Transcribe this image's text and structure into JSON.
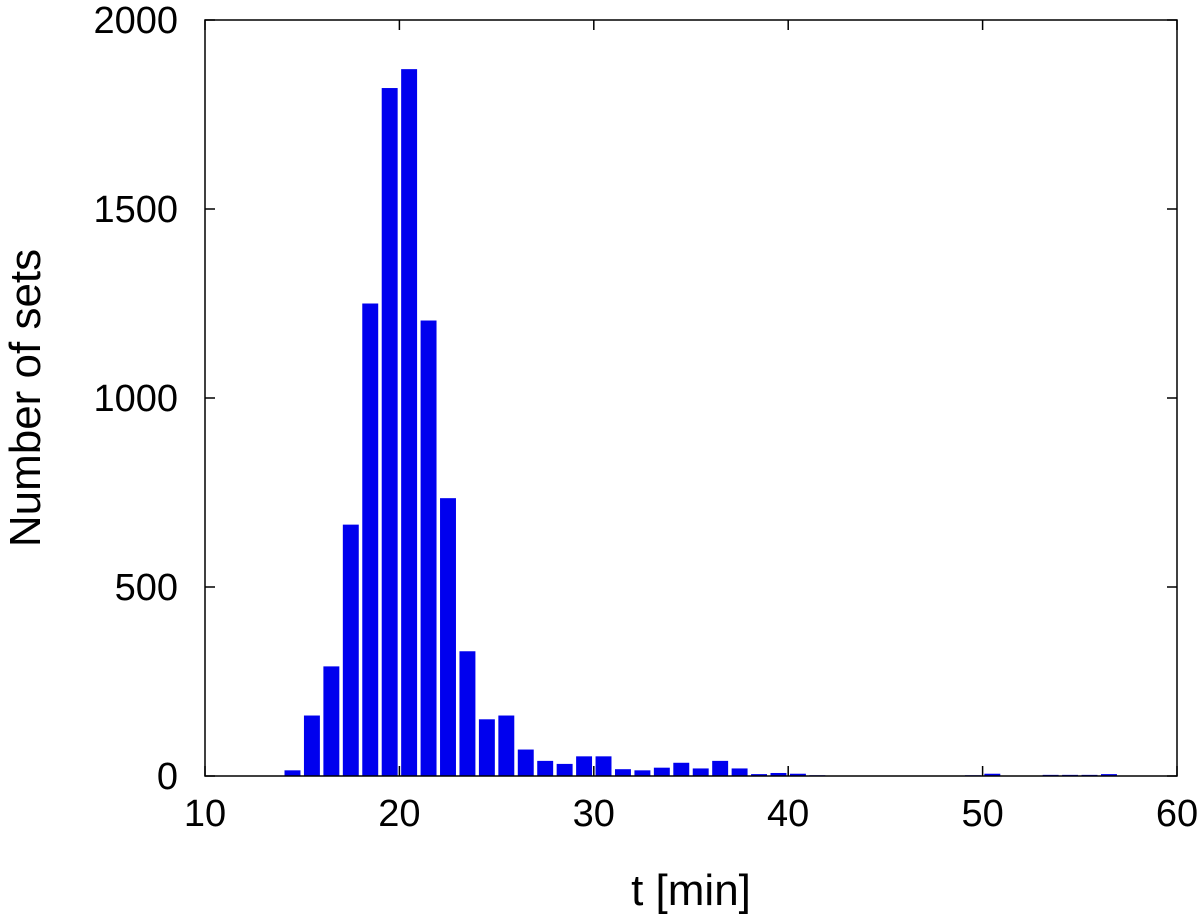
{
  "chart_data": {
    "type": "bar",
    "title": "",
    "xlabel": "t [min]",
    "ylabel": "Number of sets",
    "xlim": [
      10,
      60
    ],
    "ylim": [
      0,
      2000
    ],
    "xticks": [
      10,
      20,
      30,
      40,
      50,
      60
    ],
    "yticks": [
      0,
      500,
      1000,
      1500,
      2000
    ],
    "grid": false,
    "bar_color": "#0000ee",
    "bin_width": 1,
    "bars": [
      {
        "x": 14.5,
        "y": 15
      },
      {
        "x": 15.5,
        "y": 160
      },
      {
        "x": 16.5,
        "y": 290
      },
      {
        "x": 17.5,
        "y": 665
      },
      {
        "x": 18.5,
        "y": 1250
      },
      {
        "x": 19.5,
        "y": 1820
      },
      {
        "x": 20.5,
        "y": 1870
      },
      {
        "x": 21.5,
        "y": 1205
      },
      {
        "x": 22.5,
        "y": 735
      },
      {
        "x": 23.5,
        "y": 330
      },
      {
        "x": 24.5,
        "y": 150
      },
      {
        "x": 25.5,
        "y": 160
      },
      {
        "x": 26.5,
        "y": 70
      },
      {
        "x": 27.5,
        "y": 40
      },
      {
        "x": 28.5,
        "y": 32
      },
      {
        "x": 29.5,
        "y": 52
      },
      {
        "x": 30.5,
        "y": 52
      },
      {
        "x": 31.5,
        "y": 18
      },
      {
        "x": 32.5,
        "y": 15
      },
      {
        "x": 33.5,
        "y": 22
      },
      {
        "x": 34.5,
        "y": 35
      },
      {
        "x": 35.5,
        "y": 20
      },
      {
        "x": 36.5,
        "y": 40
      },
      {
        "x": 37.5,
        "y": 20
      },
      {
        "x": 38.5,
        "y": 5
      },
      {
        "x": 39.5,
        "y": 8
      },
      {
        "x": 40.5,
        "y": 6
      },
      {
        "x": 41.5,
        "y": 2
      },
      {
        "x": 49.5,
        "y": 2
      },
      {
        "x": 50.5,
        "y": 6
      },
      {
        "x": 53.5,
        "y": 3
      },
      {
        "x": 54.5,
        "y": 3
      },
      {
        "x": 55.5,
        "y": 3
      },
      {
        "x": 56.5,
        "y": 5
      }
    ]
  }
}
